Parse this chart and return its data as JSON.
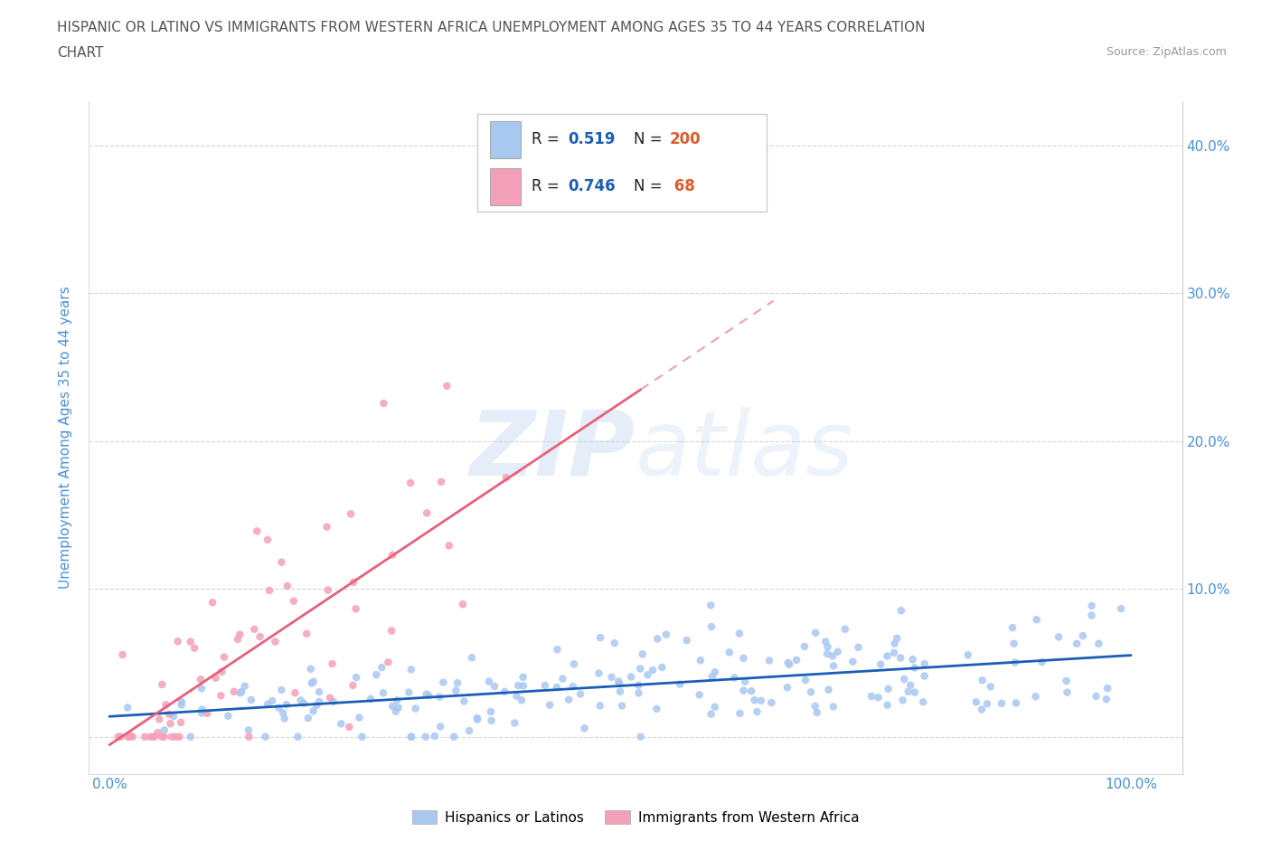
{
  "title_line1": "HISPANIC OR LATINO VS IMMIGRANTS FROM WESTERN AFRICA UNEMPLOYMENT AMONG AGES 35 TO 44 YEARS CORRELATION",
  "title_line2": "CHART",
  "source_text": "Source: ZipAtlas.com",
  "ylabel": "Unemployment Among Ages 35 to 44 years",
  "watermark_ZIP": "ZIP",
  "watermark_atlas": "atlas",
  "blue_R": 0.519,
  "blue_N": 200,
  "pink_R": 0.746,
  "pink_N": 68,
  "blue_color": "#a8c8f0",
  "pink_color": "#f4a0b8",
  "blue_line_color": "#1a5eb8",
  "pink_line_color": "#e8607a",
  "title_color": "#555555",
  "source_color": "#999999",
  "legend_R_color": "#1a5eb8",
  "legend_N_color": "#e05a2b",
  "background_color": "#ffffff",
  "grid_color": "#cccccc",
  "axis_label_color": "#4a90d9",
  "tick_label_color": "#4a90d9",
  "xlim": [
    -0.02,
    1.05
  ],
  "ylim": [
    -0.025,
    0.43
  ],
  "x_ticks": [
    0.0,
    0.1,
    0.2,
    0.3,
    0.4,
    0.5,
    0.6,
    0.7,
    0.8,
    0.9,
    1.0
  ],
  "y_ticks": [
    0.0,
    0.1,
    0.2,
    0.3,
    0.4
  ],
  "x_tick_labels": [
    "0.0%",
    "",
    "",
    "",
    "",
    "",
    "",
    "",
    "",
    "",
    "100.0%"
  ],
  "y_tick_labels_left": [
    "",
    "",
    "",
    "",
    ""
  ],
  "y_tick_labels_right": [
    "",
    "10.0%",
    "20.0%",
    "30.0%",
    "40.0%"
  ]
}
